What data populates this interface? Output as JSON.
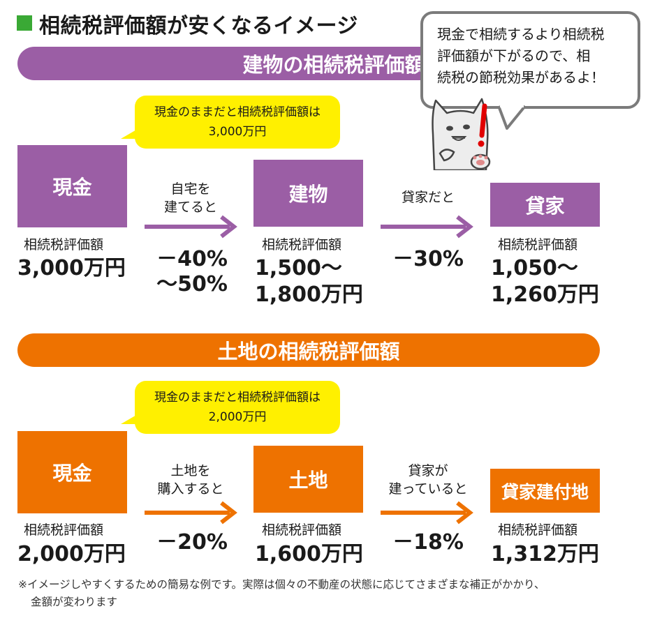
{
  "title": "相続税評価額が安くなるイメージ",
  "speech_bubble": {
    "line1": "現金で相続するより相続税",
    "line2": "評価額が下がるので、相",
    "line3": "続税の節税効果があるよ！"
  },
  "building_section": {
    "banner": "建物の相続税評価額",
    "callout_line1": "現金のままだと相続税評価額は",
    "callout_line2": "3,000万円",
    "box1": "現金",
    "box1_label": "相続税評価額",
    "box1_amount": "3,000万円",
    "step1_line1": "自宅を",
    "step1_line2": "建てると",
    "pct1_line1": "－40%",
    "pct1_line2": "～50%",
    "box2": "建物",
    "box2_label": "相続税評価額",
    "box2_amount_line1": "1,500～",
    "box2_amount_line2": "1,800万円",
    "step2_line1": "貸家だと",
    "pct2_line1": "－30%",
    "box3": "貸家",
    "box3_label": "相続税評価額",
    "box3_amount_line1": "1,050～",
    "box3_amount_line2": "1,260万円"
  },
  "land_section": {
    "banner": "土地の相続税評価額",
    "callout_line1": "現金のままだと相続税評価額は",
    "callout_line2": "2,000万円",
    "box1": "現金",
    "box1_label": "相続税評価額",
    "box1_amount": "2,000万円",
    "step1_line1": "土地を",
    "step1_line2": "購入すると",
    "pct1_line1": "－20%",
    "box2": "土地",
    "box2_label": "相続税評価額",
    "box2_amount": "1,600万円",
    "step2_line1": "貸家が",
    "step2_line2": "建っていると",
    "pct2_line1": "－18%",
    "box3": "貸家建付地",
    "box3_label": "相続税評価額",
    "box3_amount": "1,312万円"
  },
  "footnote_line1": "※イメージしやすくするための簡易な例です。実際は個々の不動産の状態に応じてさまざまな補正がかかり、",
  "footnote_line2": "金額が変わります",
  "colors": {
    "purple": "#9b5ea5",
    "orange": "#ee7200",
    "yellow": "#fff000",
    "green": "#3aa935"
  }
}
